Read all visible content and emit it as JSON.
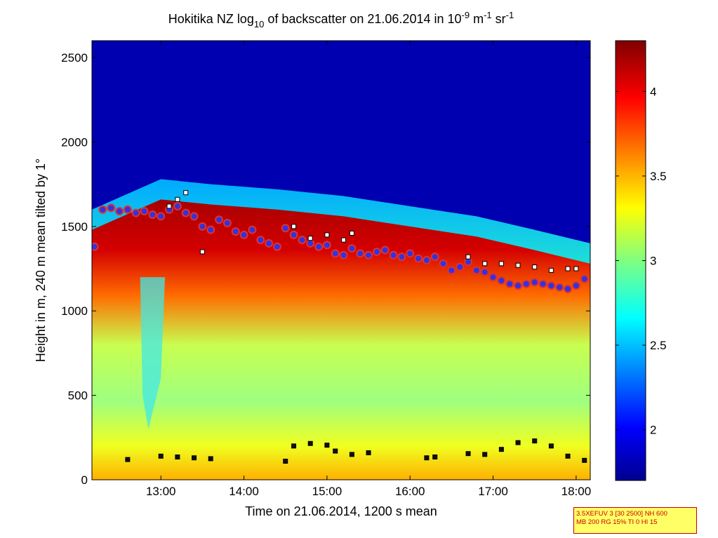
{
  "chart_data": {
    "type": "heatmap",
    "title": {
      "prefix": "Hokitika NZ log",
      "log_sub": "10",
      "middle": " of backscatter on 21.06.2014 in 10",
      "exp1": "-9",
      "unit1": " m",
      "exp2": "-1",
      "unit2": " sr",
      "exp3": "-1"
    },
    "xlabel": "Time on 21.06.2014, 1200 s mean",
    "ylabel": "Height in m, 240 m mean tilted by 1°",
    "xlim": [
      12.17,
      18.17
    ],
    "ylim": [
      0,
      2600
    ],
    "x_ticks": [
      13,
      14,
      15,
      16,
      17,
      18
    ],
    "x_tick_labels": [
      "13:00",
      "14:00",
      "15:00",
      "16:00",
      "17:00",
      "18:00"
    ],
    "y_ticks": [
      0,
      500,
      1000,
      1500,
      2000,
      2500
    ],
    "y_tick_labels": [
      "0",
      "500",
      "1000",
      "1500",
      "2000",
      "2500"
    ],
    "colorbar": {
      "range": [
        1.7,
        4.3
      ],
      "ticks": [
        2,
        2.5,
        3,
        3.5,
        4
      ],
      "tick_labels": [
        "2",
        "2.5",
        "3",
        "3.5",
        "4"
      ],
      "colormap": "jet"
    },
    "layers": {
      "cloud_base_top_m": [
        1600,
        1780,
        1750,
        1720,
        1680,
        1620,
        1560,
        1480,
        1400
      ],
      "cloud_base_time_h": [
        12.17,
        13.0,
        13.6,
        14.4,
        15.2,
        16.0,
        16.8,
        17.5,
        18.17
      ]
    },
    "series": [
      {
        "name": "upper layer (purple circles)",
        "marker": "circle",
        "color": "#3333dd",
        "edge": "#dd3333",
        "x": [
          12.2,
          12.3,
          12.4,
          12.5,
          12.6,
          12.7,
          12.8,
          12.9,
          13.0,
          13.1,
          13.2,
          13.3,
          13.4,
          13.5,
          13.6,
          13.7,
          13.8,
          13.9,
          14.0,
          14.1,
          14.2,
          14.3,
          14.4,
          14.5,
          14.6,
          14.7,
          14.8,
          14.9,
          15.0,
          15.1,
          15.2,
          15.3,
          15.4,
          15.5,
          15.6,
          15.7,
          15.8,
          15.9,
          16.0,
          16.1,
          16.2,
          16.3,
          16.4,
          16.5,
          16.6,
          16.7,
          16.8,
          16.9,
          17.0,
          17.1,
          17.2,
          17.3,
          17.4,
          17.5,
          17.6,
          17.7,
          17.8,
          17.9,
          18.0,
          18.1
        ],
        "y": [
          1380,
          1600,
          1610,
          1590,
          1600,
          1580,
          1590,
          1570,
          1560,
          1600,
          1620,
          1580,
          1560,
          1500,
          1480,
          1540,
          1520,
          1470,
          1450,
          1480,
          1420,
          1400,
          1380,
          1490,
          1450,
          1420,
          1400,
          1380,
          1390,
          1340,
          1330,
          1370,
          1340,
          1330,
          1350,
          1360,
          1330,
          1320,
          1340,
          1310,
          1300,
          1320,
          1280,
          1240,
          1260,
          1290,
          1240,
          1230,
          1200,
          1180,
          1160,
          1150,
          1160,
          1170,
          1160,
          1150,
          1140,
          1130,
          1150,
          1190
        ]
      },
      {
        "name": "cloud base (white squares)",
        "marker": "square",
        "color": "#ffffff",
        "x": [
          13.1,
          13.2,
          13.3,
          13.5,
          14.6,
          14.8,
          15.0,
          15.2,
          15.3,
          16.7,
          16.9,
          17.1,
          17.3,
          17.5,
          17.7,
          17.9,
          18.0
        ],
        "y": [
          1620,
          1660,
          1700,
          1350,
          1500,
          1430,
          1450,
          1420,
          1460,
          1320,
          1280,
          1280,
          1270,
          1260,
          1240,
          1250,
          1250
        ]
      },
      {
        "name": "mixing layer (black/cyan squares)",
        "marker": "square",
        "color": "#111111",
        "x": [
          12.6,
          13.0,
          13.2,
          13.4,
          13.6,
          14.5,
          14.6,
          14.8,
          15.0,
          15.1,
          15.3,
          15.5,
          16.2,
          16.3,
          16.7,
          16.9,
          17.1,
          17.3,
          17.5,
          17.7,
          17.9,
          18.1
        ],
        "y": [
          120,
          140,
          135,
          130,
          125,
          110,
          200,
          215,
          205,
          170,
          150,
          160,
          130,
          135,
          155,
          150,
          180,
          220,
          230,
          200,
          140,
          115
        ]
      }
    ]
  },
  "info_box": {
    "line1": "3.5XEFUV 3 [30 2500] NH 600",
    "line2": "MB 200 RG 15% TI 0 HI 15"
  }
}
